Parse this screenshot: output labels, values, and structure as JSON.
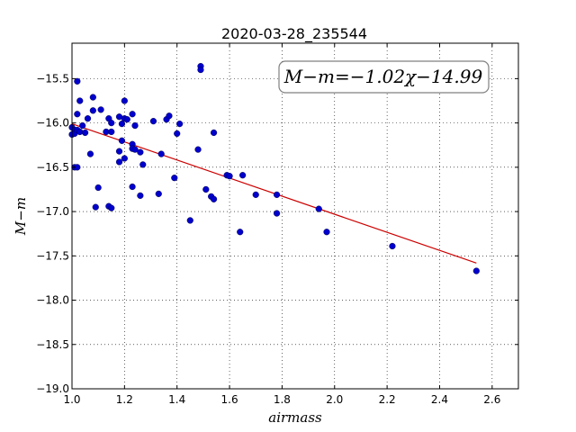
{
  "chart_data": {
    "type": "scatter",
    "title": "2020-03-28_235544",
    "xlabel": "airmass",
    "ylabel": "M−m",
    "xlim": [
      1.0,
      2.7
    ],
    "ylim": [
      -19.0,
      -15.1
    ],
    "xticks": [
      1.0,
      1.2,
      1.4,
      1.6,
      1.8,
      2.0,
      2.2,
      2.4,
      2.6
    ],
    "yticks": [
      -15.5,
      -16.0,
      -16.5,
      -17.0,
      -17.5,
      -18.0,
      -18.5,
      -19.0
    ],
    "xtick_labels": [
      "1.0",
      "1.2",
      "1.4",
      "1.6",
      "1.8",
      "2.0",
      "2.2",
      "2.4",
      "2.6"
    ],
    "ytick_labels": [
      "−15.5",
      "−16.0",
      "−16.5",
      "−17.0",
      "−17.5",
      "−18.0",
      "−18.5",
      "−19.0"
    ],
    "grid": true,
    "annotation": "M−m=−1.02χ−14.99",
    "point_color": "#0000cc",
    "fit_color": "#cc0000",
    "fit": {
      "slope": -1.02,
      "intercept": -14.99,
      "x_range": [
        1.0,
        2.54
      ]
    },
    "points": [
      {
        "x": 1.0,
        "y": -16.05
      },
      {
        "x": 1.0,
        "y": -16.13
      },
      {
        "x": 1.01,
        "y": -16.08
      },
      {
        "x": 1.01,
        "y": -16.5
      },
      {
        "x": 1.01,
        "y": -16.12
      },
      {
        "x": 1.02,
        "y": -15.53
      },
      {
        "x": 1.02,
        "y": -15.9
      },
      {
        "x": 1.02,
        "y": -16.08
      },
      {
        "x": 1.02,
        "y": -16.5
      },
      {
        "x": 1.03,
        "y": -15.75
      },
      {
        "x": 1.03,
        "y": -16.1
      },
      {
        "x": 1.04,
        "y": -16.03
      },
      {
        "x": 1.05,
        "y": -16.11
      },
      {
        "x": 1.06,
        "y": -15.95
      },
      {
        "x": 1.07,
        "y": -16.35
      },
      {
        "x": 1.08,
        "y": -15.71
      },
      {
        "x": 1.08,
        "y": -15.86
      },
      {
        "x": 1.09,
        "y": -16.95
      },
      {
        "x": 1.1,
        "y": -16.73
      },
      {
        "x": 1.11,
        "y": -15.85
      },
      {
        "x": 1.13,
        "y": -16.1
      },
      {
        "x": 1.14,
        "y": -16.94
      },
      {
        "x": 1.14,
        "y": -15.95
      },
      {
        "x": 1.15,
        "y": -16.96
      },
      {
        "x": 1.15,
        "y": -16.0
      },
      {
        "x": 1.15,
        "y": -16.1
      },
      {
        "x": 1.18,
        "y": -15.93
      },
      {
        "x": 1.18,
        "y": -16.32
      },
      {
        "x": 1.18,
        "y": -16.44
      },
      {
        "x": 1.19,
        "y": -16.01
      },
      {
        "x": 1.19,
        "y": -16.2
      },
      {
        "x": 1.2,
        "y": -16.4
      },
      {
        "x": 1.2,
        "y": -15.95
      },
      {
        "x": 1.2,
        "y": -15.75
      },
      {
        "x": 1.21,
        "y": -15.96
      },
      {
        "x": 1.23,
        "y": -16.72
      },
      {
        "x": 1.23,
        "y": -15.9
      },
      {
        "x": 1.23,
        "y": -16.24
      },
      {
        "x": 1.23,
        "y": -16.29
      },
      {
        "x": 1.24,
        "y": -16.03
      },
      {
        "x": 1.24,
        "y": -16.3
      },
      {
        "x": 1.26,
        "y": -16.82
      },
      {
        "x": 1.26,
        "y": -16.33
      },
      {
        "x": 1.27,
        "y": -16.47
      },
      {
        "x": 1.31,
        "y": -15.98
      },
      {
        "x": 1.33,
        "y": -16.8
      },
      {
        "x": 1.34,
        "y": -16.35
      },
      {
        "x": 1.36,
        "y": -15.96
      },
      {
        "x": 1.37,
        "y": -15.92
      },
      {
        "x": 1.39,
        "y": -16.62
      },
      {
        "x": 1.4,
        "y": -16.12
      },
      {
        "x": 1.41,
        "y": -16.01
      },
      {
        "x": 1.45,
        "y": -17.1
      },
      {
        "x": 1.48,
        "y": -16.3
      },
      {
        "x": 1.49,
        "y": -15.36
      },
      {
        "x": 1.49,
        "y": -15.4
      },
      {
        "x": 1.51,
        "y": -16.75
      },
      {
        "x": 1.53,
        "y": -16.83
      },
      {
        "x": 1.54,
        "y": -16.86
      },
      {
        "x": 1.54,
        "y": -16.11
      },
      {
        "x": 1.59,
        "y": -16.59
      },
      {
        "x": 1.6,
        "y": -16.6
      },
      {
        "x": 1.64,
        "y": -17.23
      },
      {
        "x": 1.65,
        "y": -16.59
      },
      {
        "x": 1.7,
        "y": -16.81
      },
      {
        "x": 1.78,
        "y": -16.81
      },
      {
        "x": 1.78,
        "y": -17.02
      },
      {
        "x": 1.94,
        "y": -16.97
      },
      {
        "x": 1.97,
        "y": -17.23
      },
      {
        "x": 2.22,
        "y": -17.39
      },
      {
        "x": 2.54,
        "y": -17.67
      }
    ]
  }
}
